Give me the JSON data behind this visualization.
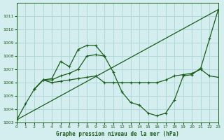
{
  "title": "Graphe pression niveau de la mer (hPa)",
  "bg_color": "#d4eef0",
  "grid_color": "#b0d8d8",
  "line_color": "#1a5c1a",
  "x_min": 0,
  "x_max": 23,
  "y_min": 1003,
  "y_max": 1012,
  "series1": {
    "x": [
      0,
      1,
      2,
      3,
      4,
      5,
      6,
      7,
      8,
      9,
      10,
      11,
      12,
      13,
      14,
      15,
      16,
      17,
      18,
      19,
      20,
      21,
      22,
      23
    ],
    "y": [
      1003.2,
      1004.4,
      1005.5,
      1006.2,
      1006.2,
      1006.5,
      1006.7,
      1007.0,
      1008.0,
      1008.1,
      1008.0,
      1006.8,
      1005.3,
      1004.5,
      1004.3,
      1003.7,
      1003.5,
      1003.7,
      1004.7,
      1006.5,
      1006.6,
      1007.1,
      1009.3,
      1011.5
    ]
  },
  "series2": {
    "x": [
      0,
      23
    ],
    "y": [
      1003.2,
      1011.5
    ]
  },
  "series3": {
    "x": [
      2,
      3,
      4,
      5,
      6,
      7,
      8,
      9,
      10
    ],
    "y": [
      1005.5,
      1006.2,
      1006.3,
      1007.6,
      1007.2,
      1008.5,
      1008.8,
      1008.8,
      1008.0
    ]
  },
  "series4": {
    "x": [
      2,
      3,
      4,
      5,
      6,
      7,
      8,
      9,
      10,
      11,
      12,
      13,
      14,
      15,
      16,
      17,
      18,
      19,
      20,
      21,
      22,
      23
    ],
    "y": [
      1005.5,
      1006.2,
      1006.0,
      1006.1,
      1006.2,
      1006.3,
      1006.4,
      1006.5,
      1006.0,
      1006.0,
      1006.0,
      1006.0,
      1006.0,
      1006.0,
      1006.0,
      1006.2,
      1006.5,
      1006.6,
      1006.7,
      1007.0,
      1006.5,
      1006.4
    ]
  },
  "xticks": [
    0,
    1,
    2,
    3,
    4,
    5,
    6,
    7,
    8,
    9,
    10,
    11,
    12,
    13,
    14,
    15,
    16,
    17,
    18,
    19,
    20,
    21,
    22,
    23
  ],
  "yticks": [
    1003,
    1004,
    1005,
    1006,
    1007,
    1008,
    1009,
    1010,
    1011
  ]
}
